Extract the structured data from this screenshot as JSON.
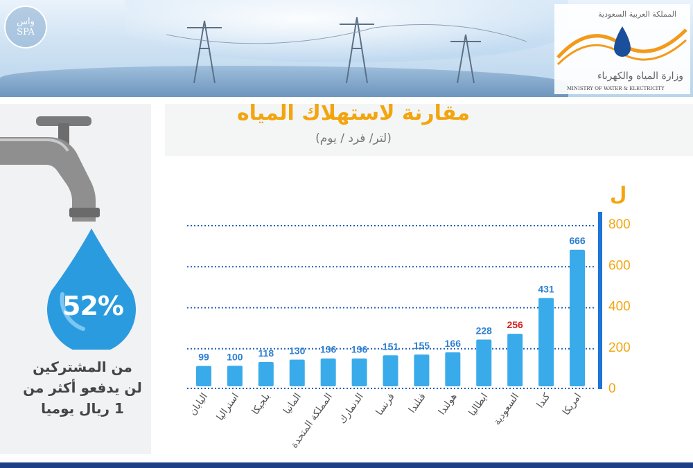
{
  "header": {
    "agency_logo": "واس\nSPA",
    "agency_logo_line1": "واس",
    "agency_logo_line2": "SPA",
    "ministry_kingdom_ar": "المملكة العربية السعودية",
    "ministry_name_ar": "وزارة المياه والكهرباء",
    "ministry_name_en": "MINISTRY OF WATER & ELECTRICITY"
  },
  "left_panel": {
    "percent": "52%",
    "caption_lines": [
      "من المشتركين",
      "لن يدفعو أكثر من",
      "1 ريال يوميا"
    ]
  },
  "chart_data": {
    "type": "bar",
    "title": "مقارنة لاستهلاك المياه",
    "subtitle": "(لتر/ فرد / يوم)",
    "categories": [
      "اليابان",
      "استراليا",
      "بلجيكا",
      "المانيا",
      "المملكة المتحدة",
      "الدنمارك",
      "فرنسا",
      "فنلندا",
      "هولندا",
      "ايطاليا",
      "السعودية",
      "كندا",
      "امريكا"
    ],
    "values": [
      99,
      100,
      118,
      130,
      136,
      136,
      151,
      155,
      166,
      228,
      256,
      431,
      666
    ],
    "value_labels": [
      "99",
      "100",
      "118",
      "130",
      "136",
      "136",
      "151",
      "155",
      "166",
      "228",
      "256",
      "431",
      "666"
    ],
    "highlight_category": "السعودية",
    "ylim": [
      0,
      800
    ],
    "yticks": [
      0,
      200,
      400,
      600,
      800
    ],
    "ytick_labels": [
      "0",
      "200",
      "400",
      "600",
      "800"
    ],
    "ylabel_unit": "ل",
    "grid": true,
    "colors": {
      "bar": "#3aabea",
      "value_label": "#2d7fd0",
      "highlight_label": "#d42020",
      "axis": "#1e74d8",
      "tick_label": "#f3a50f",
      "category_label": "#555555",
      "grid": "#1e5fb8"
    }
  },
  "colors": {
    "title": "#f3a50f",
    "drop": "#2b9be0",
    "bottom_bar": "#1d3f85"
  }
}
